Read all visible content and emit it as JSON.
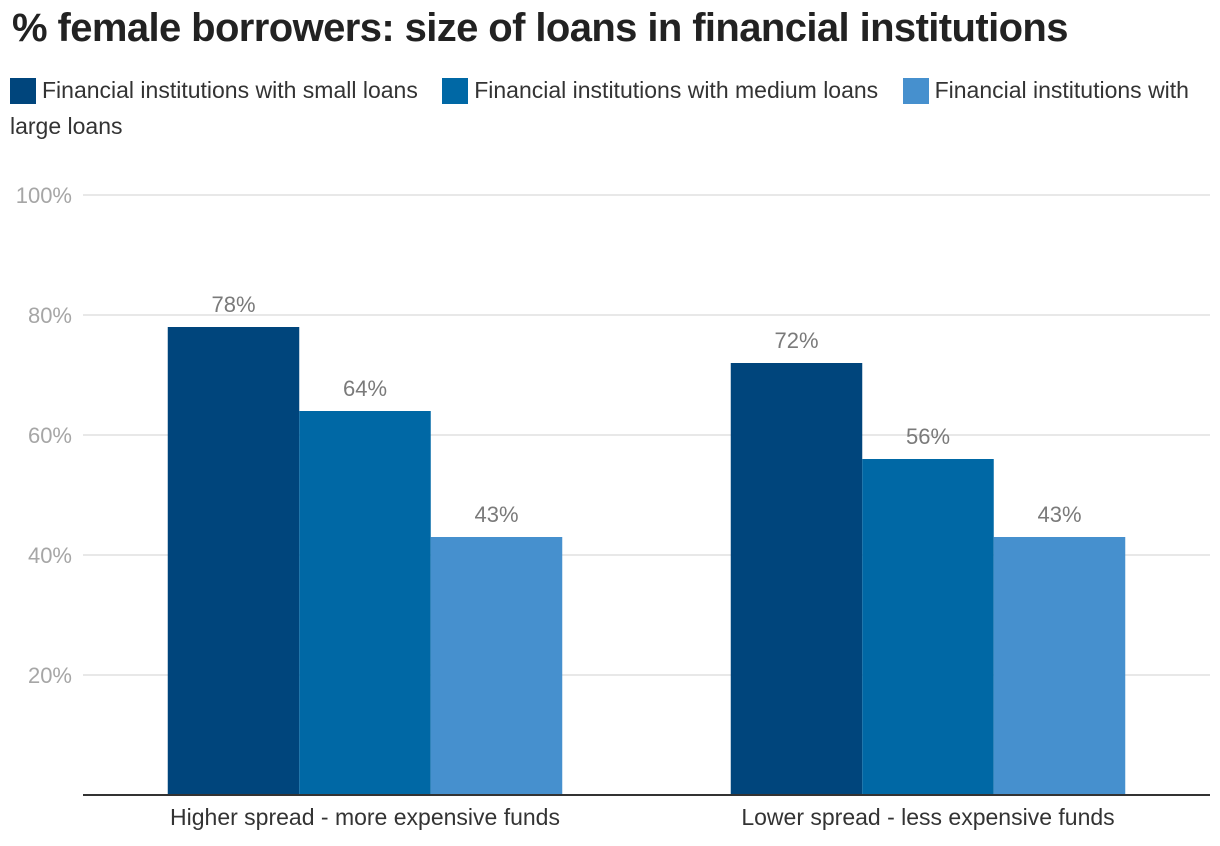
{
  "chart_data": {
    "type": "bar",
    "title": "% female borrowers: size of loans in financial institutions",
    "categories": [
      "Higher spread - more expensive funds",
      "Lower spread - less expensive funds"
    ],
    "series": [
      {
        "name": "Financial institutions with small loans",
        "values": [
          78,
          72
        ],
        "color": "#00457c",
        "labels": [
          "78%",
          "72%"
        ]
      },
      {
        "name": "Financial institutions with medium loans",
        "values": [
          64,
          56
        ],
        "color": "#0068a5",
        "labels": [
          "64%",
          "56%"
        ]
      },
      {
        "name": "Financial institutions with large loans",
        "values": [
          43,
          43
        ],
        "color": "#4690ce",
        "labels": [
          "43%",
          "43%"
        ]
      }
    ],
    "yticks": [
      20,
      40,
      60,
      80,
      100
    ],
    "ytick_labels": [
      "20%",
      "40%",
      "60%",
      "80%",
      "100%"
    ],
    "ylim": [
      0,
      100
    ],
    "xlabel": "",
    "ylabel": "",
    "grid": true,
    "legend_position": "top-left",
    "colors": {
      "title": "#222222",
      "tick_label": "#a6a6a6",
      "data_label": "#7a7a7a",
      "category_label": "#333333",
      "gridline": "#e0e0e0",
      "axis": "#333333"
    }
  }
}
